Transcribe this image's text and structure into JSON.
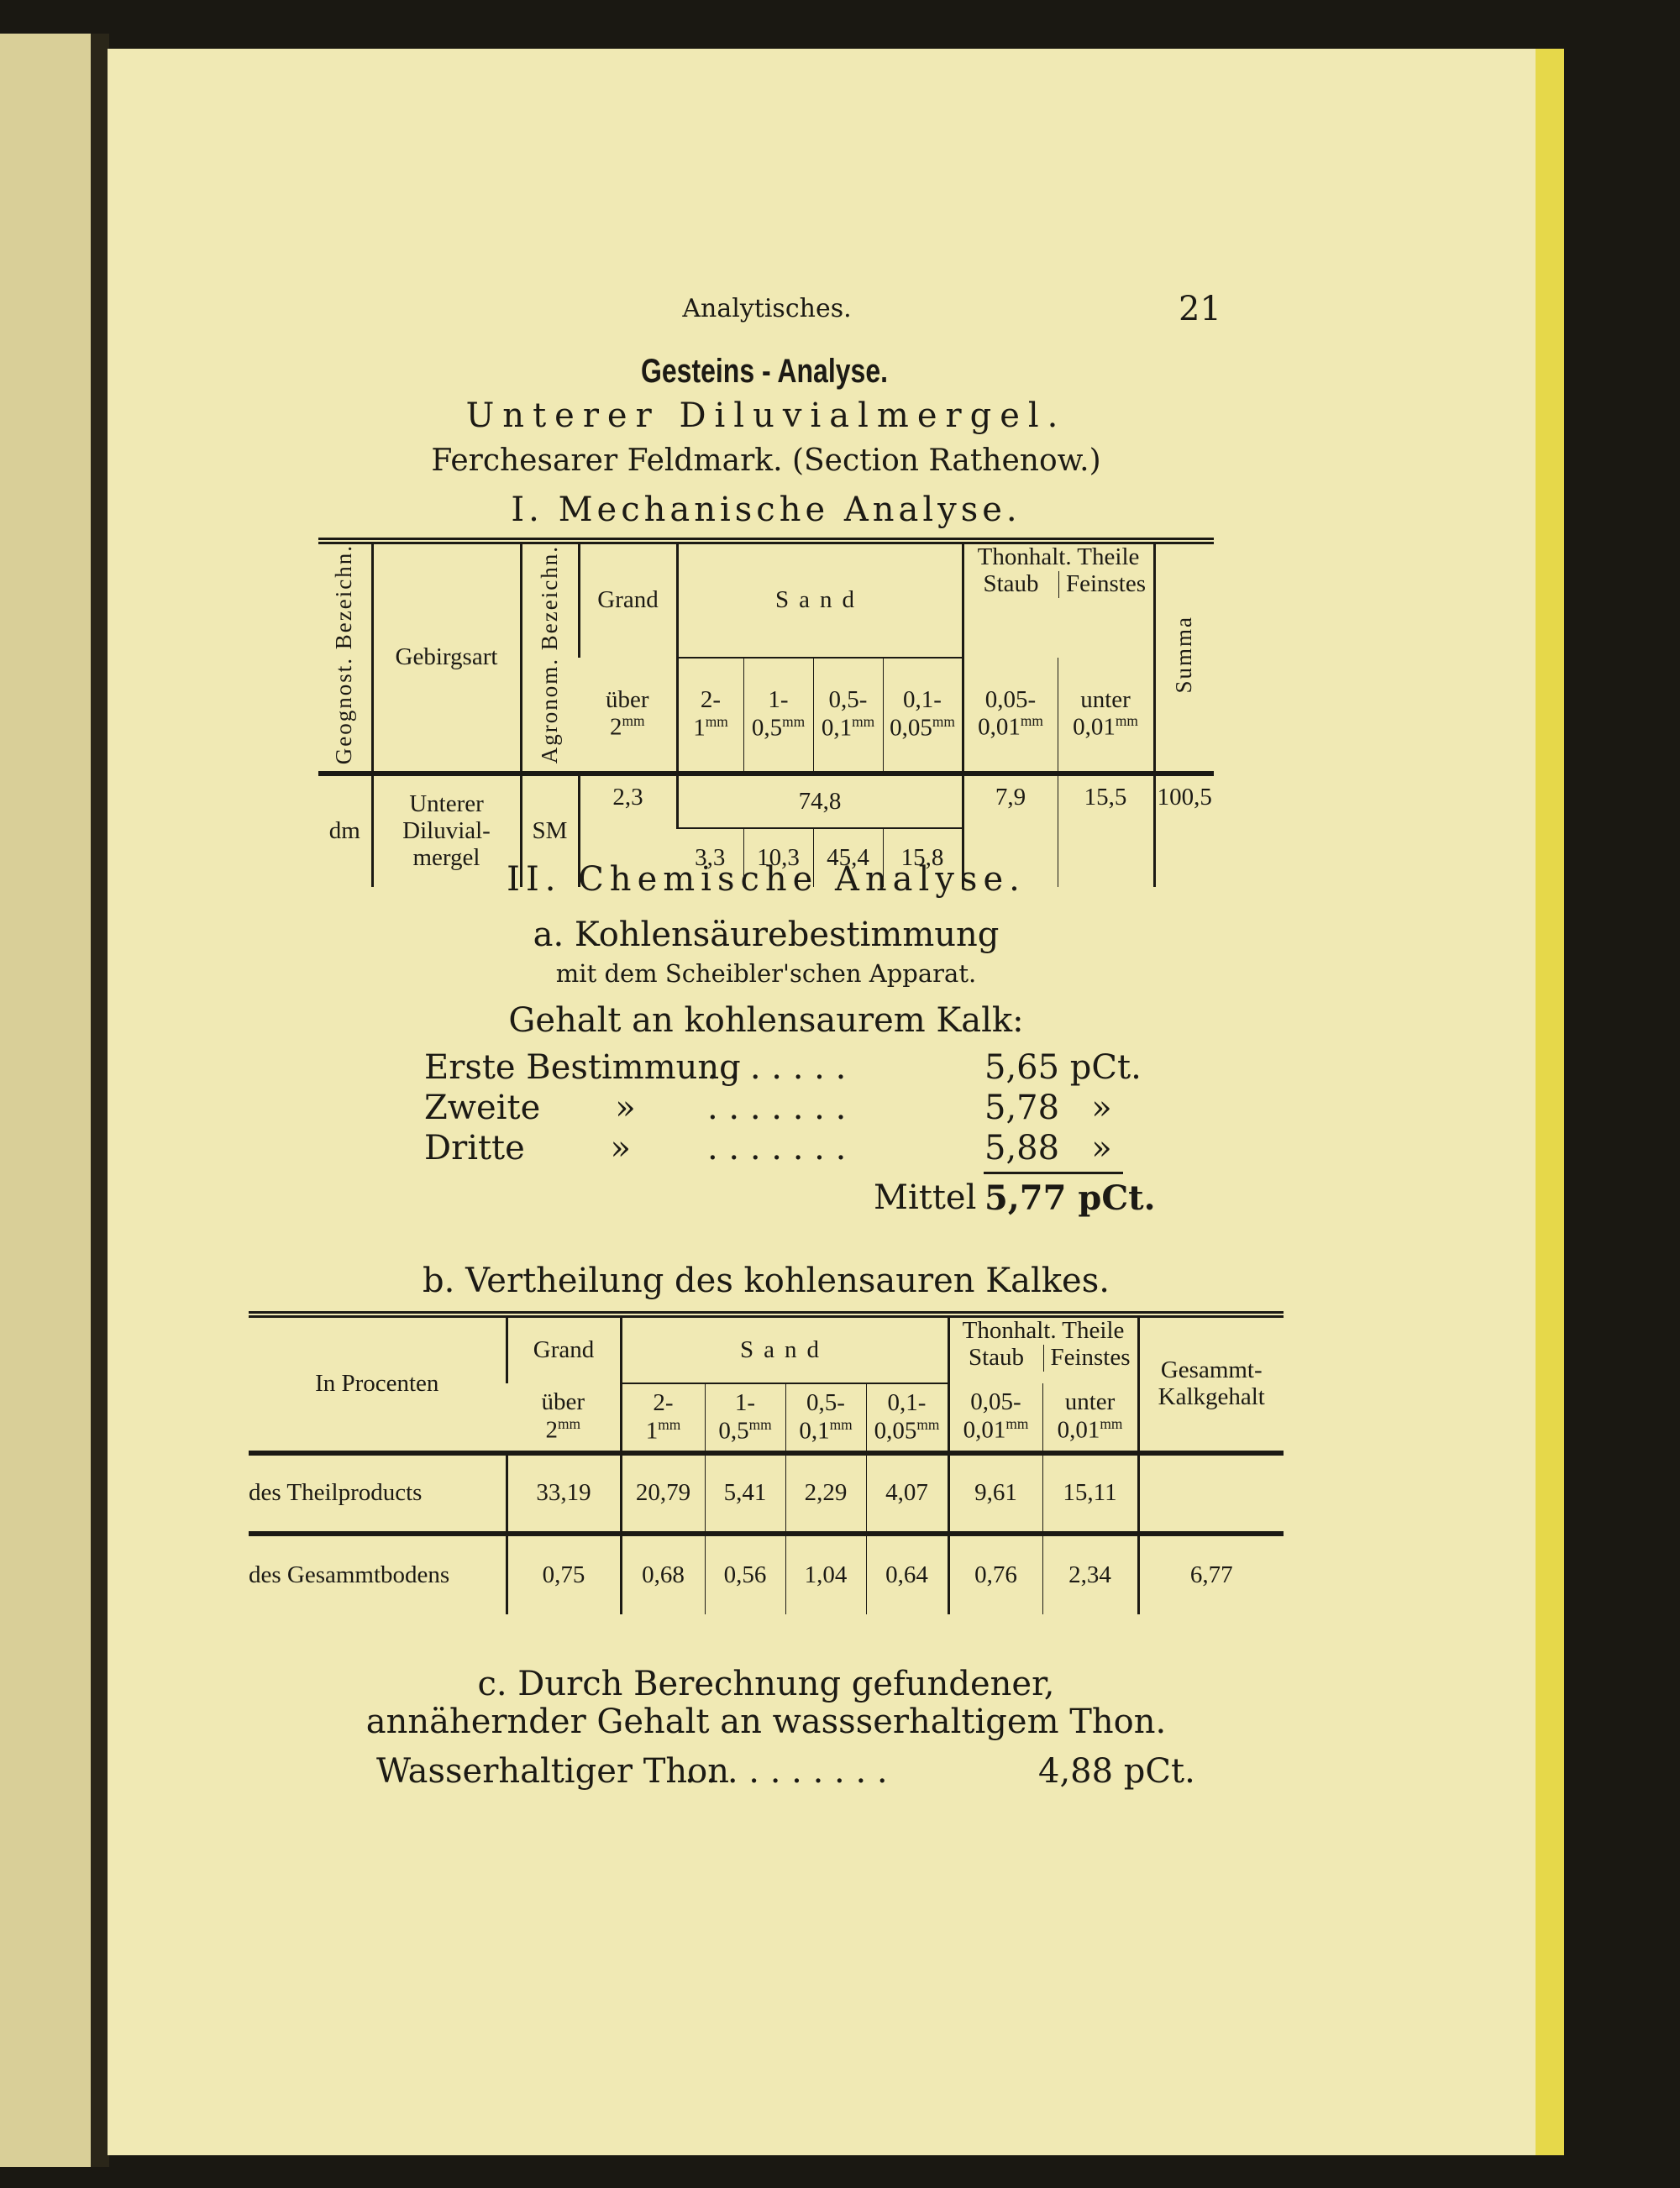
{
  "header": {
    "running_title": "Analytisches.",
    "page_number": "21"
  },
  "title": "Gesteins - Analyse.",
  "subtitle": "Unterer Diluvialmergel.",
  "location": "Ferchesarer Feldmark.   (Section Rathenow.)",
  "section1": {
    "heading": "I.  Mechanische Analyse.",
    "headers": {
      "geognost": "Geognost. Bezeichn.",
      "gebirgsart": "Gebirgsart",
      "agronom": "Agronom. Bezeichn.",
      "grand": "Grand",
      "grand_sub": "über",
      "grand_size": "2",
      "sand": "Sand",
      "sand_cols": [
        [
          "2-",
          "1"
        ],
        [
          "1-",
          "0,5"
        ],
        [
          "0,5-",
          "0,1"
        ],
        [
          "0,1-",
          "0,05"
        ]
      ],
      "thon": "Thonhalt. Theile",
      "staub": "Staub",
      "staub_size": [
        "0,05-",
        "0,01"
      ],
      "feinstes": "Feinstes",
      "feinstes_size": [
        "unter",
        "0,01"
      ],
      "summa": "Summa",
      "unit": "mm"
    },
    "row": {
      "geognost": "dm",
      "gebirgsart": "Unterer Diluvial- mergel",
      "agronom": "SM",
      "grand": "2,3",
      "sand_total": "74,8",
      "sand": [
        "3,3",
        "10,3",
        "45,4",
        "15,8"
      ],
      "staub": "7,9",
      "feinstes": "15,5",
      "summa": "100,5"
    }
  },
  "section2": {
    "heading": "II.  Chemische Analyse.",
    "a_heading": "a.  Kohlensäurebestimmung",
    "a_sub": "mit dem Scheibler'schen Apparat.",
    "gehalt": "Gehalt an kohlensaurem Kalk:",
    "rows": [
      {
        "label": "Erste Bestimmung",
        "dots": ". . . . . . .",
        "value": "5,65 pCt."
      },
      {
        "label": "Zweite       »",
        "dots": ". . . . . . .",
        "value": "5,78   »"
      },
      {
        "label": "Dritte        »",
        "dots": ". . . . . . .",
        "value": "5,88   »"
      }
    ],
    "mittel_label": "Mittel",
    "mittel_value": "5,77 pCt.",
    "b_heading": "b.  Vertheilung des kohlensauren Kalkes.",
    "b_table": {
      "headers": {
        "in_procenten": "In Procenten",
        "grand": "Grand",
        "grand_sub": "über",
        "grand_size": "2",
        "sand": "Sand",
        "sand_cols": [
          [
            "2-",
            "1"
          ],
          [
            "1-",
            "0,5"
          ],
          [
            "0,5-",
            "0,1"
          ],
          [
            "0,1-",
            "0,05"
          ]
        ],
        "thon": "Thonhalt. Theile",
        "staub": "Staub",
        "staub_size": [
          "0,05-",
          "0,01"
        ],
        "feinstes": "Feinstes",
        "feinstes_size": [
          "unter",
          "0,01"
        ],
        "gesammt": "Gesammt- Kalkgehalt",
        "unit": "mm"
      },
      "rows": [
        {
          "label": "des Theilproducts",
          "values": [
            "33,19",
            "20,79",
            "5,41",
            "2,29",
            "4,07",
            "9,61",
            "15,11",
            ""
          ]
        },
        {
          "label": "des Gesammtbodens",
          "values": [
            "0,75",
            "0,68",
            "0,56",
            "1,04",
            "0,64",
            "0,76",
            "2,34",
            "6,77"
          ]
        }
      ]
    },
    "c_heading_1": "c.  Durch Berechnung gefundener,",
    "c_heading_2": "annähernder Gehalt an wassserhaltigem Thon.",
    "thon_label": "Wasserhaltiger Thon",
    "thon_dots": ". . . . . . . . . .",
    "thon_value": "4,88 pCt."
  },
  "colors": {
    "paper": "#f0e9b4",
    "ink": "#1c1a14",
    "edge": "#e6d84a",
    "background": "#1a1812"
  }
}
